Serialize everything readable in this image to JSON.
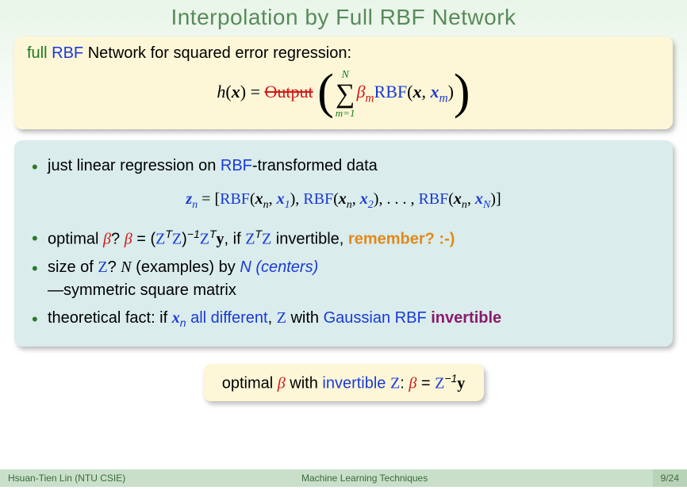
{
  "title": "Interpolation by Full RBF Network",
  "box1": {
    "lead_full": "full",
    "lead_rbf": "RBF",
    "lead_rest": " Network for squared error regression:",
    "h": "h",
    "x": "x",
    "eq": " = ",
    "output": "Output",
    "sum_top": "N",
    "sum_bot": "m=1",
    "beta": "β",
    "beta_sub": "m",
    "rbf": "RBF",
    "paren_open": "(",
    "paren_close": ")",
    "comma": ", ",
    "xm": "x",
    "xm_sub": "m"
  },
  "box2": {
    "b1_a": "just linear regression on ",
    "b1_rbf": "RBF",
    "b1_b": "-transformed data",
    "zrow_zn": "z",
    "zrow_zn_sub": "n",
    "zrow_eq": " = [",
    "zrow_rbf": "RBF",
    "zrow_open": "(",
    "zrow_xn": "x",
    "zrow_xn_sub": "n",
    "zrow_comma": ", ",
    "zrow_x1": "x",
    "zrow_x1_sub": "1",
    "zrow_close": ")",
    "zrow_sep": ", ",
    "zrow_x2_sub": "2",
    "zrow_dots": ", . . . , ",
    "zrow_xN_sub": "N",
    "zrow_end": "]",
    "b2_a": "optimal ",
    "b2_beta": "β",
    "b2_q": "? ",
    "b2_beta2": "β",
    "b2_eq": " = (",
    "b2_Z": "Z",
    "b2_T": "T",
    "b2_inv": "−1",
    "b2_y": "y",
    "b2_if": ", if ",
    "b2_invert": " invertible, ",
    "b2_rem": "remember? :-)",
    "b3_a": "size of ",
    "b3_Z": "Z",
    "b3_q": "? ",
    "b3_N": "N",
    "b3_ex": " (examples) by ",
    "b3_Nc": "N (centers)",
    "b3_line2": "—symmetric square matrix",
    "b4_a": "theoretical fact: if ",
    "b4_xn": "x",
    "b4_xn_sub": "n",
    "b4_diff": " all different",
    "b4_comma": ", ",
    "b4_Z": "Z",
    "b4_with": " with ",
    "b4_g": "Gaussian RBF",
    "b4_inv": " invertible"
  },
  "box3": {
    "a": "optimal ",
    "beta": "β",
    "with": " with ",
    "inv": "invertible ",
    "Z": "Z",
    "colon": ": ",
    "beta2": "β",
    "eq": " = ",
    "Z2": "Z",
    "neg1": "−1",
    "y": "y"
  },
  "footer": {
    "left": "Hsuan-Tien Lin (NTU CSIE)",
    "mid": "Machine Learning Techniques",
    "right": "9/24"
  },
  "colors": {
    "title": "#5a8a5a",
    "green": "#1a7a1a",
    "blue": "#1a3ad6",
    "red": "#d01818",
    "orange": "#e08a1a",
    "purple": "#8a1a6a",
    "yellow_bg": "#fdf7d8",
    "blue_bg": "#daecec",
    "footer_bg": "#c9dfc9"
  }
}
